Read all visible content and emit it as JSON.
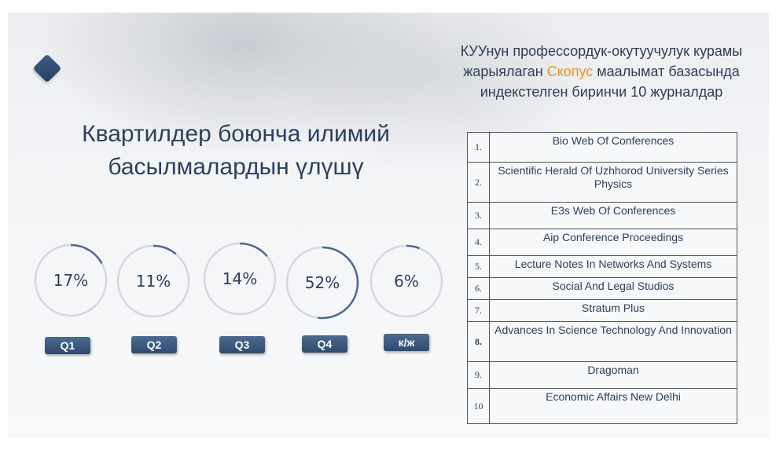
{
  "heading": {
    "line1": "КУУнун профессордук-окутуучулук курамы",
    "line2_pre": "жарыялаган ",
    "line2_highlight": "Скопус",
    "line2_post": " маалымат базасында",
    "line3": "индекстелген биринчи 10 журналдар"
  },
  "title": {
    "line1": "Квартилдер боюнча илимий",
    "line2": "басылмалардын үлүшү"
  },
  "colors": {
    "accent": "#f0901e",
    "ring_track": "#d5d8dc",
    "ring_fill": "#4d6a8f",
    "button": "#2f4a6e"
  },
  "quartiles": [
    {
      "label": "Q1",
      "percent": "17%",
      "value": 17
    },
    {
      "label": "Q2",
      "percent": "11%",
      "value": 11
    },
    {
      "label": "Q3",
      "percent": "14%",
      "value": 14
    },
    {
      "label": "Q4",
      "percent": "52%",
      "value": 52
    },
    {
      "label": "к/ж",
      "percent": "6%",
      "value": 6
    }
  ],
  "journals": [
    {
      "num": "1.",
      "name": "Bio Web Of Conferences"
    },
    {
      "num": "2.",
      "name": "Scientific Herald Of Uzhhorod University Series Physics"
    },
    {
      "num": "3.",
      "name": "E3s Web Of Conferences"
    },
    {
      "num": "4.",
      "name": "Aip Conference Proceedings"
    },
    {
      "num": "5.",
      "name": "Lecture Notes In Networks And Systems"
    },
    {
      "num": "6.",
      "name": "Social And Legal Studios"
    },
    {
      "num": "7.",
      "name": "Stratum Plus"
    },
    {
      "num": "8.",
      "name": "Advances In Science Technology And Innovation"
    },
    {
      "num": "9.",
      "name": "Dragoman"
    },
    {
      "num": "10",
      "name": "Economic Affairs New Delhi"
    }
  ]
}
